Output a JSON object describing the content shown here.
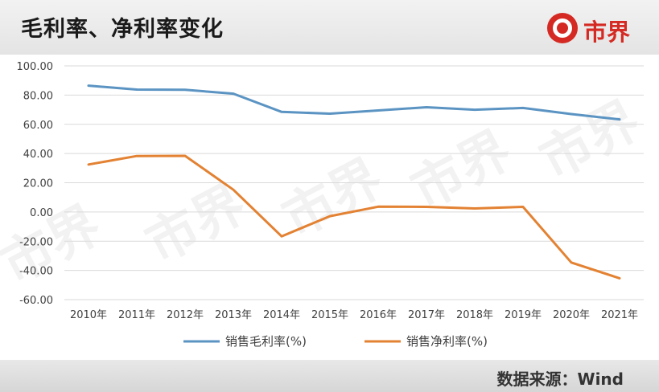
{
  "title": "毛利率、净利率变化",
  "logo": {
    "text": "市界",
    "icon": "shield-s-icon",
    "color": "#d42a23"
  },
  "watermark": {
    "text": "市界"
  },
  "source": "数据来源：Wind",
  "chart_data": {
    "type": "line",
    "categories": [
      "2010年",
      "2011年",
      "2012年",
      "2013年",
      "2014年",
      "2015年",
      "2016年",
      "2017年",
      "2018年",
      "2019年",
      "2020年",
      "2021年"
    ],
    "series": [
      {
        "name": "销售毛利率(%)",
        "color": "#5b94c3",
        "values": [
          86.5,
          83.8,
          83.6,
          81.0,
          68.5,
          67.3,
          69.5,
          71.7,
          70.0,
          71.2,
          67.0,
          63.4
        ]
      },
      {
        "name": "销售净利率(%)",
        "color": "#e38233",
        "values": [
          32.5,
          38.3,
          38.4,
          15.2,
          -16.7,
          -2.9,
          3.6,
          3.5,
          2.4,
          3.5,
          -34.6,
          -45.4
        ]
      }
    ],
    "yticks": [
      "100.00",
      "80.00",
      "60.00",
      "40.00",
      "20.00",
      "0.00",
      "-20.00",
      "-40.00",
      "-60.00"
    ],
    "ylim": [
      -60,
      100
    ],
    "grid": true,
    "legend": "bottom"
  }
}
